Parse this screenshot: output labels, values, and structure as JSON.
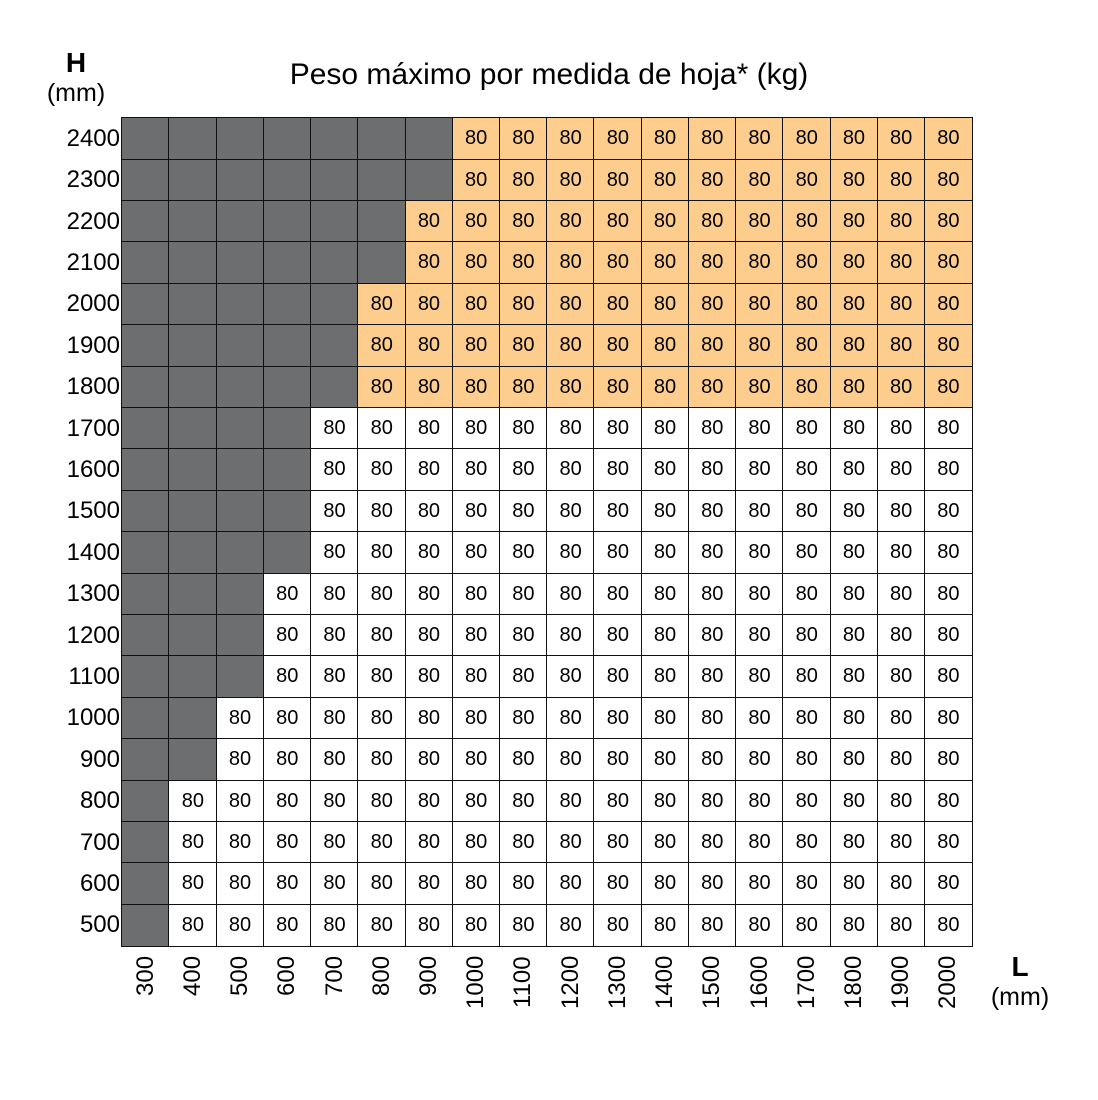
{
  "chart_data": {
    "type": "heatmap",
    "title": "Peso máximo por medida de hoja* (kg)",
    "ylabel": "H",
    "ylabel_unit": "(mm)",
    "xlabel": "L",
    "xlabel_unit": "(mm)",
    "x": [
      "300",
      "400",
      "500",
      "600",
      "700",
      "800",
      "900",
      "1000",
      "1100",
      "1200",
      "1300",
      "1400",
      "1500",
      "1600",
      "1700",
      "1800",
      "1900",
      "2000"
    ],
    "y": [
      "2400",
      "2300",
      "2200",
      "2100",
      "2000",
      "1900",
      "1800",
      "1700",
      "1600",
      "1500",
      "1400",
      "1300",
      "1200",
      "1100",
      "1000",
      "900",
      "800",
      "700",
      "600",
      "500"
    ],
    "highlight_rows": [
      "2400",
      "2300",
      "2200",
      "2100",
      "2000",
      "1900",
      "1800"
    ],
    "values": [
      [
        null,
        null,
        null,
        null,
        null,
        null,
        null,
        80,
        80,
        80,
        80,
        80,
        80,
        80,
        80,
        80,
        80,
        80
      ],
      [
        null,
        null,
        null,
        null,
        null,
        null,
        null,
        80,
        80,
        80,
        80,
        80,
        80,
        80,
        80,
        80,
        80,
        80
      ],
      [
        null,
        null,
        null,
        null,
        null,
        null,
        80,
        80,
        80,
        80,
        80,
        80,
        80,
        80,
        80,
        80,
        80,
        80
      ],
      [
        null,
        null,
        null,
        null,
        null,
        null,
        80,
        80,
        80,
        80,
        80,
        80,
        80,
        80,
        80,
        80,
        80,
        80
      ],
      [
        null,
        null,
        null,
        null,
        null,
        80,
        80,
        80,
        80,
        80,
        80,
        80,
        80,
        80,
        80,
        80,
        80,
        80
      ],
      [
        null,
        null,
        null,
        null,
        null,
        80,
        80,
        80,
        80,
        80,
        80,
        80,
        80,
        80,
        80,
        80,
        80,
        80
      ],
      [
        null,
        null,
        null,
        null,
        null,
        80,
        80,
        80,
        80,
        80,
        80,
        80,
        80,
        80,
        80,
        80,
        80,
        80
      ],
      [
        null,
        null,
        null,
        null,
        80,
        80,
        80,
        80,
        80,
        80,
        80,
        80,
        80,
        80,
        80,
        80,
        80,
        80
      ],
      [
        null,
        null,
        null,
        null,
        80,
        80,
        80,
        80,
        80,
        80,
        80,
        80,
        80,
        80,
        80,
        80,
        80,
        80
      ],
      [
        null,
        null,
        null,
        null,
        80,
        80,
        80,
        80,
        80,
        80,
        80,
        80,
        80,
        80,
        80,
        80,
        80,
        80
      ],
      [
        null,
        null,
        null,
        null,
        80,
        80,
        80,
        80,
        80,
        80,
        80,
        80,
        80,
        80,
        80,
        80,
        80,
        80
      ],
      [
        null,
        null,
        null,
        80,
        80,
        80,
        80,
        80,
        80,
        80,
        80,
        80,
        80,
        80,
        80,
        80,
        80,
        80
      ],
      [
        null,
        null,
        null,
        80,
        80,
        80,
        80,
        80,
        80,
        80,
        80,
        80,
        80,
        80,
        80,
        80,
        80,
        80
      ],
      [
        null,
        null,
        null,
        80,
        80,
        80,
        80,
        80,
        80,
        80,
        80,
        80,
        80,
        80,
        80,
        80,
        80,
        80
      ],
      [
        null,
        null,
        80,
        80,
        80,
        80,
        80,
        80,
        80,
        80,
        80,
        80,
        80,
        80,
        80,
        80,
        80,
        80
      ],
      [
        null,
        null,
        80,
        80,
        80,
        80,
        80,
        80,
        80,
        80,
        80,
        80,
        80,
        80,
        80,
        80,
        80,
        80
      ],
      [
        null,
        80,
        80,
        80,
        80,
        80,
        80,
        80,
        80,
        80,
        80,
        80,
        80,
        80,
        80,
        80,
        80,
        80
      ],
      [
        null,
        80,
        80,
        80,
        80,
        80,
        80,
        80,
        80,
        80,
        80,
        80,
        80,
        80,
        80,
        80,
        80,
        80
      ],
      [
        null,
        80,
        80,
        80,
        80,
        80,
        80,
        80,
        80,
        80,
        80,
        80,
        80,
        80,
        80,
        80,
        80,
        80
      ],
      [
        null,
        80,
        80,
        80,
        80,
        80,
        80,
        80,
        80,
        80,
        80,
        80,
        80,
        80,
        80,
        80,
        80,
        80
      ]
    ],
    "colors": {
      "unavailable": "#6d6e70",
      "highlight": "#fdcd8e",
      "normal": "#ffffff"
    }
  }
}
